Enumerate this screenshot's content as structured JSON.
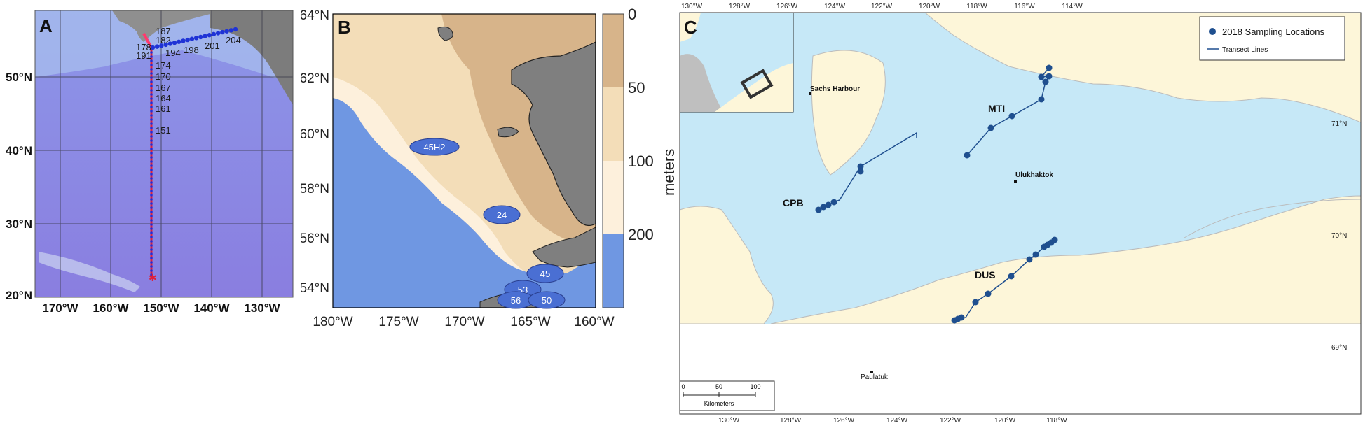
{
  "panels": {
    "a": {
      "label": "A",
      "lat_labels": [
        "50°N",
        "40°N",
        "30°N",
        "20°N"
      ],
      "lon_labels": [
        "170°W",
        "160°W",
        "150°W",
        "140°W",
        "130°W"
      ],
      "station_labels": [
        "187",
        "182",
        "178",
        "191",
        "194",
        "198",
        "201",
        "204",
        "174",
        "170",
        "167",
        "164",
        "161",
        "151"
      ]
    },
    "b": {
      "label": "B",
      "lat_labels": [
        "64°N",
        "62°N",
        "60°N",
        "58°N",
        "56°N",
        "54°N"
      ],
      "lon_labels": [
        "180°W",
        "175°W",
        "170°W",
        "165°W",
        "160°W"
      ],
      "stations": [
        "45H2",
        "24",
        "45",
        "53",
        "56",
        "50"
      ],
      "colorbar": {
        "ticks": [
          "0",
          "50",
          "100",
          "200"
        ],
        "unit": "meters",
        "colors": [
          "#d7b48a",
          "#f3ddb8",
          "#fdf0dc",
          "#6f97e2"
        ]
      }
    },
    "c": {
      "label": "C",
      "top_lon_labels": [
        "130°W",
        "128°W",
        "126°W",
        "124°W",
        "122°W",
        "120°W",
        "118°W",
        "116°W",
        "114°W"
      ],
      "bottom_lon_labels": [
        "130°W",
        "128°W",
        "126°W",
        "124°W",
        "122°W",
        "120°W",
        "118°W"
      ],
      "right_lat_labels": [
        "71°N",
        "70°N",
        "69°N"
      ],
      "legend": {
        "sampling": "2018 Sampling Locations",
        "transect": "Transect Lines"
      },
      "places": {
        "sachs": "Sachs Harbour",
        "ulukhaktok": "Ulukhaktok",
        "paulatuk": "Paulatuk"
      },
      "transects": [
        "MTI",
        "CPB",
        "DUS"
      ],
      "scalebar": {
        "ticks": [
          "0",
          "50",
          "100"
        ],
        "unit": "Kilometers"
      }
    }
  }
}
